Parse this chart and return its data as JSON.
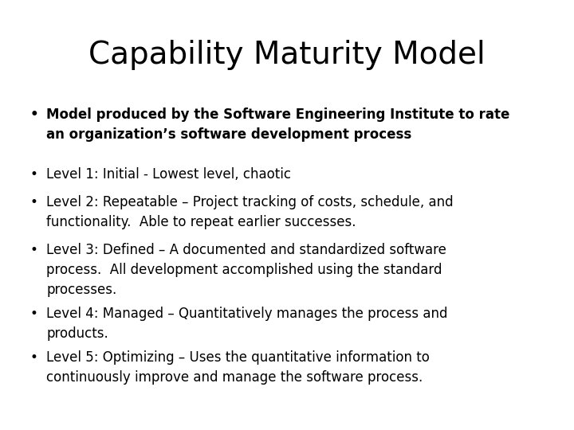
{
  "title": "Capability Maturity Model",
  "title_fontsize": 28,
  "title_font": "sans-serif",
  "background_color": "#ffffff",
  "text_color": "#000000",
  "bullet1_bold": "Model produced by the Software Engineering Institute to rate\nan organization’s software development process",
  "bullets": [
    "Level 1: Initial - Lowest level, chaotic",
    "Level 2: Repeatable – Project tracking of costs, schedule, and\nfunctionality.  Able to repeat earlier successes.",
    "Level 3: Defined – A documented and standardized software\nprocess.  All development accomplished using the standard\nprocesses.",
    "Level 4: Managed – Quantitatively manages the process and\nproducts.",
    "Level 5: Optimizing – Uses the quantitative information to\ncontinuously improve and manage the software process."
  ],
  "bullet_fontsize": 12,
  "bullet1_fontsize": 12,
  "fig_width": 7.2,
  "fig_height": 5.4,
  "dpi": 100
}
